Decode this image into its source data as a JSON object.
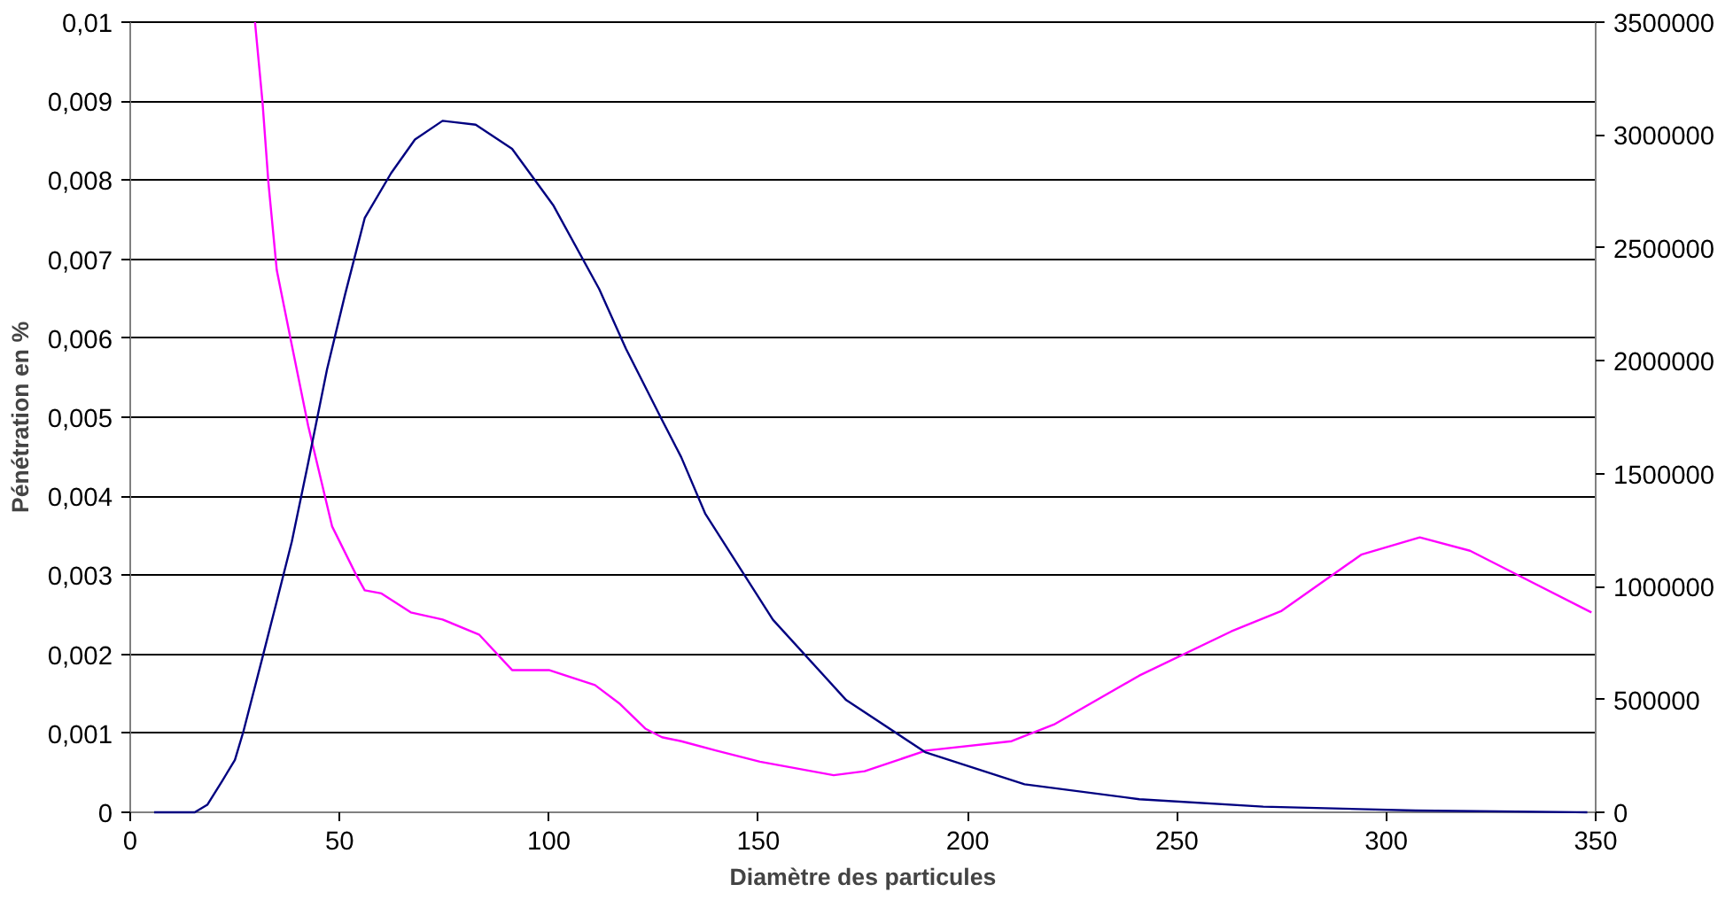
{
  "chart_data": {
    "type": "line",
    "xlabel": "Diamètre des particules",
    "ylabel": "Pénétration en %",
    "xlim": [
      0,
      350
    ],
    "xticks": [
      0,
      50,
      100,
      150,
      200,
      250,
      300,
      350
    ],
    "ylim": [
      0,
      0.01
    ],
    "yticks": [
      {
        "value": 0,
        "label": "0"
      },
      {
        "value": 0.001,
        "label": "0,001"
      },
      {
        "value": 0.002,
        "label": "0,002"
      },
      {
        "value": 0.003,
        "label": "0,003"
      },
      {
        "value": 0.004,
        "label": "0,004"
      },
      {
        "value": 0.005,
        "label": "0,005"
      },
      {
        "value": 0.006,
        "label": "0,006"
      },
      {
        "value": 0.007,
        "label": "0,007"
      },
      {
        "value": 0.008,
        "label": "0,008"
      },
      {
        "value": 0.009,
        "label": "0,009"
      },
      {
        "value": 0.01,
        "label": "0,01"
      }
    ],
    "y2lim": [
      0,
      3500000
    ],
    "y2ticks": [
      0,
      500000,
      1000000,
      1500000,
      2000000,
      2500000,
      3000000,
      3500000
    ],
    "grid": "y",
    "marker": "none",
    "line_style": "solid",
    "series": [
      {
        "color": "#ff00ff",
        "x": [
          29.8,
          31.6,
          33,
          35,
          38.6,
          42.5,
          48.2,
          54,
          56,
          60,
          67,
          74.6,
          83.3,
          91.2,
          100,
          111,
          117,
          123,
          127,
          131.6,
          140,
          150.4,
          168,
          175.4,
          190,
          210.5,
          220.6,
          241,
          263,
          275,
          294,
          308,
          320,
          333,
          349
        ],
        "values": [
          0.01,
          0.00898,
          0.00797,
          0.00686,
          0.00591,
          0.00489,
          0.00362,
          0.003,
          0.00281,
          0.00277,
          0.00253,
          0.00244,
          0.00225,
          0.0018,
          0.0018,
          0.00161,
          0.00137,
          0.00106,
          0.00095,
          0.0009,
          0.00078,
          0.00064,
          0.00047,
          0.00052,
          0.00078,
          0.0009,
          0.00111,
          0.00173,
          0.00229,
          0.00255,
          0.00326,
          0.00348,
          0.00331,
          0.00296,
          0.00253
        ]
      },
      {
        "color": "#000080",
        "axis": "y2",
        "x": [
          5.7,
          15.4,
          18.4,
          22,
          25,
          27,
          31.6,
          35,
          38.6,
          42.5,
          47,
          51.3,
          56,
          62.3,
          68,
          74.6,
          82.5,
          91.2,
          101,
          112,
          118.4,
          127,
          131.6,
          137.3,
          153.5,
          171,
          190,
          213.6,
          241,
          270.6,
          307,
          348
        ],
        "values": [
          0,
          0,
          33000,
          140000,
          232000,
          356000,
          687000,
          935000,
          1200000,
          1548000,
          1962000,
          2293000,
          2632000,
          2831000,
          2980000,
          3063000,
          3046000,
          2939000,
          2690000,
          2318000,
          2053000,
          1738000,
          1573000,
          1324000,
          853000,
          497000,
          265000,
          124000,
          58000,
          25000,
          8000,
          0
        ]
      }
    ]
  }
}
